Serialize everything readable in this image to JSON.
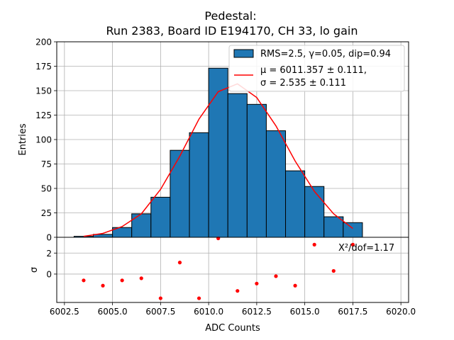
{
  "chart_data": {
    "type": "bar",
    "title_line1": "Pedestal:",
    "title_line2": "Run 2383, Board ID E194170, CH 33, lo gain",
    "histogram": {
      "bin_edges": [
        3,
        4,
        5,
        6,
        7,
        8,
        9,
        10,
        11,
        12,
        13,
        14,
        15,
        16,
        17,
        18
      ],
      "counts": [
        1,
        3,
        10,
        24,
        41,
        89,
        107,
        173,
        147,
        136,
        109,
        68,
        52,
        21,
        15
      ],
      "color": "#1f77b4",
      "edge_color": "#000000",
      "legend_label": "RMS=2.5, γ=0.05, dip=0.94"
    },
    "fit": {
      "x": [
        3.5,
        4.5,
        5.5,
        6.5,
        7.5,
        8.5,
        9.5,
        10.5,
        11.5,
        12.5,
        13.5,
        14.5,
        15.5,
        16.5,
        17.5
      ],
      "y": [
        1,
        4,
        11,
        24,
        49,
        83,
        121,
        149,
        157,
        143,
        114,
        78,
        47,
        24,
        9
      ],
      "color": "#ff0000",
      "legend_line1": "μ = 6011.357 ± 0.111,",
      "legend_line2": "σ = 2.535 ± 0.111"
    },
    "residuals": {
      "x": [
        3.5,
        4.5,
        5.5,
        6.5,
        7.5,
        8.5,
        9.5,
        10.5,
        11.5,
        12.5,
        13.5,
        14.5,
        15.5,
        16.5,
        17.5
      ],
      "y": [
        -0.6,
        -1.1,
        -0.6,
        -0.4,
        -2.3,
        1.1,
        -2.3,
        3.4,
        -1.6,
        -0.9,
        -0.2,
        -1.1,
        2.8,
        0.3,
        2.8
      ],
      "color": "#ff0000",
      "ylim": [
        -2.7,
        3.5
      ],
      "yticks": [
        "2",
        "0"
      ],
      "ylabel": "σ",
      "annotation": "X²/dof=1.17"
    },
    "x_offset": 6000,
    "xlim": [
      2.1,
      20.4
    ],
    "xticks": [
      "6002.5",
      "6005.0",
      "6007.5",
      "6010.0",
      "6012.5",
      "6015.0",
      "6017.5",
      "6020.0"
    ],
    "xlabel": "ADC Counts",
    "ylim": [
      0,
      200
    ],
    "yticks": [
      "0",
      "25",
      "50",
      "75",
      "100",
      "125",
      "150",
      "175",
      "200"
    ],
    "ylabel": "Entries",
    "grid": true,
    "legend_position": "top-right"
  }
}
